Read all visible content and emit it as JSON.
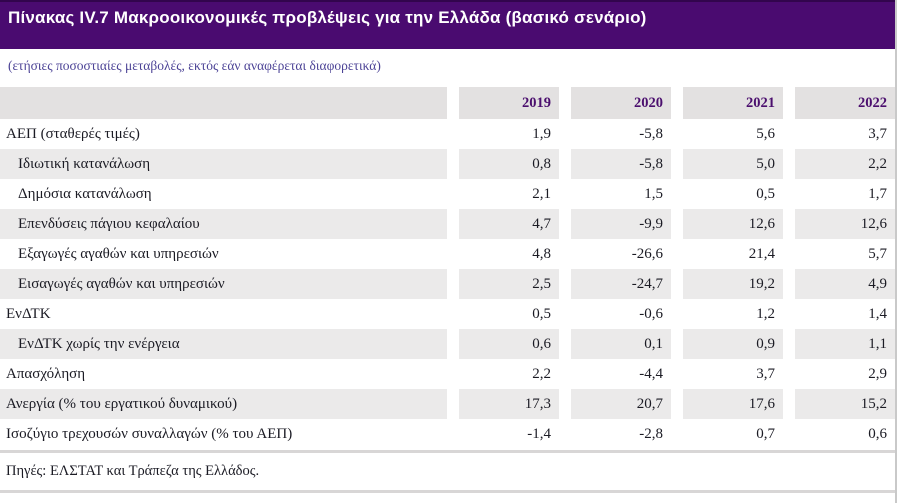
{
  "header": {
    "title": "Πίνακας IV.7 Μακροοικονομικές προβλέψεις για την Ελλάδα (βασικό σενάριο)"
  },
  "subtitle": "(ετήσιες ποσοστιαίες μεταβολές, εκτός εάν αναφέρεται διαφορετικά)",
  "table": {
    "columns": [
      "2019",
      "2020",
      "2021",
      "2022"
    ],
    "rows": [
      {
        "label": "ΑΕΠ (σταθερές τιμές)",
        "values": [
          "1,9",
          "-5,8",
          "5,6",
          "3,7"
        ]
      },
      {
        "label": "Ιδιωτική κατανάλωση",
        "values": [
          "0,8",
          "-5,8",
          "5,0",
          "2,2"
        ]
      },
      {
        "label": "Δημόσια κατανάλωση",
        "values": [
          "2,1",
          "1,5",
          "0,5",
          "1,7"
        ]
      },
      {
        "label": "Επενδύσεις πάγιου κεφαλαίου",
        "values": [
          "4,7",
          "-9,9",
          "12,6",
          "12,6"
        ]
      },
      {
        "label": "Εξαγωγές αγαθών και υπηρεσιών",
        "values": [
          "4,8",
          "-26,6",
          "21,4",
          "5,7"
        ]
      },
      {
        "label": "Εισαγωγές αγαθών και υπηρεσιών",
        "values": [
          "2,5",
          "-24,7",
          "19,2",
          "4,9"
        ]
      },
      {
        "label": "ΕνΔΤΚ",
        "values": [
          "0,5",
          "-0,6",
          "1,2",
          "1,4"
        ]
      },
      {
        "label": "ΕνΔΤΚ χωρίς την ενέργεια",
        "values": [
          "0,6",
          "0,1",
          "0,9",
          "1,1"
        ]
      },
      {
        "label": "Απασχόληση",
        "values": [
          "2,2",
          "-4,4",
          "3,7",
          "2,9"
        ]
      },
      {
        "label": "Ανεργία (% του εργατικού δυναμικού)",
        "values": [
          "17,3",
          "20,7",
          "17,6",
          "15,2"
        ]
      },
      {
        "label": "Ισοζύγιο τρεχουσών συναλλαγών (% του ΑΕΠ)",
        "values": [
          "-1,4",
          "-2,8",
          "0,7",
          "0,6"
        ]
      }
    ]
  },
  "footer": {
    "sources": "Πηγές: ΕΛΣΤΑΤ και Τράπεζα της Ελλάδος."
  },
  "colors": {
    "title_bar": "#4a0b70",
    "title_text": "#ffffff",
    "subtitle_text": "#4c4396",
    "year_header_text": "#4b0f6e",
    "header_row_bg": "#e3e1e1",
    "stripe_row_bg": "#ebeaea",
    "body_text": "#1b1b24",
    "rule": "#d8d6d6"
  }
}
